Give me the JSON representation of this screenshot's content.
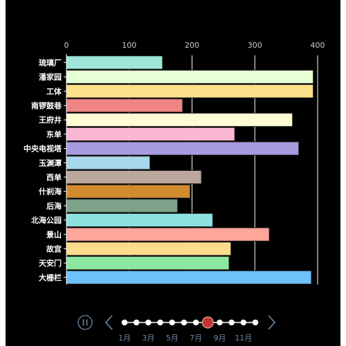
{
  "chart_data": {
    "type": "bar",
    "orientation": "horizontal",
    "categories": [
      "琉璃厂",
      "潘家园",
      "工体",
      "南锣鼓巷",
      "王府井",
      "东单",
      "中央电视塔",
      "玉渊潭",
      "西单",
      "什刹海",
      "后海",
      "北海公园",
      "景山",
      "故宫",
      "天安门",
      "大栅栏"
    ],
    "values": [
      153,
      393,
      393,
      185,
      360,
      268,
      370,
      133,
      215,
      197,
      177,
      233,
      323,
      262,
      259,
      390
    ],
    "colors": [
      "#9ee6da",
      "#e6ffd4",
      "#fde18a",
      "#f08585",
      "#fffbd2",
      "#fbb8d4",
      "#a99be0",
      "#a7d8ec",
      "#bca79c",
      "#d08b2e",
      "#7ea28b",
      "#8de2e0",
      "#fea69a",
      "#fddc8b",
      "#8ce7a1",
      "#6ec0fb"
    ],
    "xticks": [
      0,
      100,
      200,
      300,
      400
    ],
    "xlim": [
      0,
      400
    ],
    "title": "",
    "xlabel": "",
    "ylabel": "",
    "grid": "vertical gridlines",
    "legend": "none"
  },
  "timeline": {
    "labels": [
      "1月",
      "3月",
      "5月",
      "7月",
      "9月",
      "11月"
    ],
    "point_count": 12,
    "current_index": 7,
    "play_icon": "pause-icon",
    "prev_icon": "chevron-left-icon",
    "next_icon": "chevron-right-icon",
    "accent_color": "#c23531",
    "control_color": "#6d8aa8"
  }
}
